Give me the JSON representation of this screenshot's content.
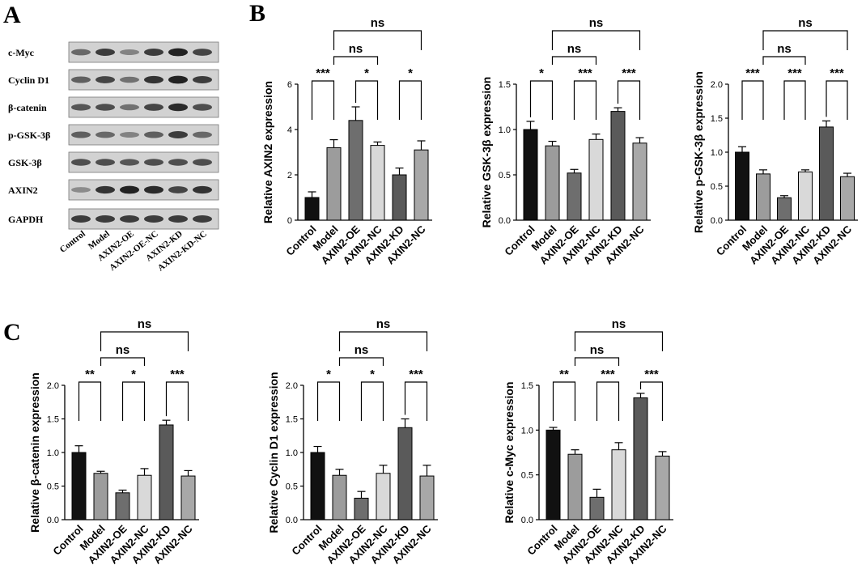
{
  "panels": {
    "A": "A",
    "B": "B",
    "C": "C"
  },
  "western_blot": {
    "proteins": [
      "c-Myc",
      "Cyclin D1",
      "β-catenin",
      "p-GSK-3β",
      "GSK-3β",
      "AXIN2",
      "GAPDH"
    ],
    "lanes": [
      "Control",
      "Model",
      "AXIN2-OE",
      "AXIN2-OE-NC",
      "AXIN2-KD",
      "AXIN2-KD-NC"
    ],
    "band_intensity": [
      [
        0.55,
        0.8,
        0.4,
        0.8,
        0.95,
        0.75
      ],
      [
        0.6,
        0.75,
        0.5,
        0.85,
        0.95,
        0.8
      ],
      [
        0.65,
        0.7,
        0.5,
        0.75,
        0.9,
        0.7
      ],
      [
        0.6,
        0.55,
        0.4,
        0.6,
        0.8,
        0.55
      ],
      [
        0.7,
        0.7,
        0.65,
        0.7,
        0.7,
        0.7
      ],
      [
        0.35,
        0.85,
        0.95,
        0.9,
        0.75,
        0.85
      ],
      [
        0.8,
        0.8,
        0.8,
        0.8,
        0.8,
        0.8
      ]
    ]
  },
  "chart_data": [
    {
      "type": "bar",
      "ylabel": "Relative AXIN2 expression",
      "categories": [
        "Control",
        "Model",
        "AXIN2-OE",
        "AXIN2-NC",
        "AXIN2-KD",
        "AXIN2-NC"
      ],
      "values": [
        1.0,
        3.2,
        4.4,
        3.3,
        2.0,
        3.1
      ],
      "errors": [
        0.25,
        0.35,
        0.6,
        0.15,
        0.3,
        0.4
      ],
      "ylim": [
        0,
        6
      ],
      "yticks": [
        "0",
        "2",
        "4",
        "6"
      ],
      "bar_colors": [
        "#111111",
        "#9c9c9c",
        "#6e6e6e",
        "#d9d9d9",
        "#5a5a5a",
        "#a8a8a8"
      ],
      "significance": [
        {
          "from": 0,
          "to": 1,
          "label": "***"
        },
        {
          "from": 2,
          "to": 3,
          "label": "*"
        },
        {
          "from": 4,
          "to": 5,
          "label": "*"
        },
        {
          "from": 1,
          "to": 3,
          "label": "ns"
        },
        {
          "from": 1,
          "to": 5,
          "label": "ns"
        }
      ]
    },
    {
      "type": "bar",
      "ylabel": "Relative GSK-3β expression",
      "categories": [
        "Control",
        "Model",
        "AXIN2-OE",
        "AXIN2-NC",
        "AXIN2-KD",
        "AXIN2-NC"
      ],
      "values": [
        1.0,
        0.82,
        0.52,
        0.89,
        1.2,
        0.85
      ],
      "errors": [
        0.09,
        0.05,
        0.04,
        0.06,
        0.04,
        0.06
      ],
      "ylim": [
        0,
        1.5
      ],
      "yticks": [
        "0.0",
        "0.5",
        "1.0",
        "1.5"
      ],
      "bar_colors": [
        "#111111",
        "#9c9c9c",
        "#6e6e6e",
        "#d9d9d9",
        "#5a5a5a",
        "#a8a8a8"
      ],
      "significance": [
        {
          "from": 0,
          "to": 1,
          "label": "*"
        },
        {
          "from": 2,
          "to": 3,
          "label": "***"
        },
        {
          "from": 4,
          "to": 5,
          "label": "***"
        },
        {
          "from": 1,
          "to": 3,
          "label": "ns"
        },
        {
          "from": 1,
          "to": 5,
          "label": "ns"
        }
      ]
    },
    {
      "type": "bar",
      "ylabel": "Relative p-GSK-3β expression",
      "categories": [
        "Control",
        "Model",
        "AXIN2-OE",
        "AXIN2-NC",
        "AXIN2-KD",
        "AXIN2-NC"
      ],
      "values": [
        1.0,
        0.68,
        0.33,
        0.71,
        1.37,
        0.64
      ],
      "errors": [
        0.08,
        0.06,
        0.03,
        0.03,
        0.09,
        0.05
      ],
      "ylim": [
        0,
        2.0
      ],
      "yticks": [
        "0.0",
        "0.5",
        "1.0",
        "1.5",
        "2.0"
      ],
      "bar_colors": [
        "#111111",
        "#9c9c9c",
        "#6e6e6e",
        "#d9d9d9",
        "#5a5a5a",
        "#a8a8a8"
      ],
      "significance": [
        {
          "from": 0,
          "to": 1,
          "label": "***"
        },
        {
          "from": 2,
          "to": 3,
          "label": "***"
        },
        {
          "from": 4,
          "to": 5,
          "label": "***"
        },
        {
          "from": 1,
          "to": 3,
          "label": "ns"
        },
        {
          "from": 1,
          "to": 5,
          "label": "ns"
        }
      ]
    },
    {
      "type": "bar",
      "ylabel": "Relative β-catenin expression",
      "categories": [
        "Control",
        "Model",
        "AXIN2-OE",
        "AXIN2-NC",
        "AXIN2-KD",
        "AXIN2-NC"
      ],
      "values": [
        1.0,
        0.69,
        0.4,
        0.66,
        1.41,
        0.65
      ],
      "errors": [
        0.1,
        0.03,
        0.04,
        0.1,
        0.07,
        0.08
      ],
      "ylim": [
        0,
        2.0
      ],
      "yticks": [
        "0.0",
        "0.5",
        "1.0",
        "1.5",
        "2.0"
      ],
      "bar_colors": [
        "#111111",
        "#9c9c9c",
        "#6e6e6e",
        "#d9d9d9",
        "#5a5a5a",
        "#a8a8a8"
      ],
      "significance": [
        {
          "from": 0,
          "to": 1,
          "label": "**"
        },
        {
          "from": 2,
          "to": 3,
          "label": "*"
        },
        {
          "from": 4,
          "to": 5,
          "label": "***"
        },
        {
          "from": 1,
          "to": 3,
          "label": "ns"
        },
        {
          "from": 1,
          "to": 5,
          "label": "ns"
        }
      ]
    },
    {
      "type": "bar",
      "ylabel": "Relative Cyclin D1 expression",
      "categories": [
        "Control",
        "Model",
        "AXIN2-OE",
        "AXIN2-NC",
        "AXIN2-KD",
        "AXIN2-NC"
      ],
      "values": [
        1.0,
        0.66,
        0.32,
        0.69,
        1.37,
        0.65
      ],
      "errors": [
        0.09,
        0.09,
        0.1,
        0.12,
        0.13,
        0.16
      ],
      "ylim": [
        0,
        2.0
      ],
      "yticks": [
        "0.0",
        "0.5",
        "1.0",
        "1.5",
        "2.0"
      ],
      "bar_colors": [
        "#111111",
        "#9c9c9c",
        "#6e6e6e",
        "#d9d9d9",
        "#5a5a5a",
        "#a8a8a8"
      ],
      "significance": [
        {
          "from": 0,
          "to": 1,
          "label": "*"
        },
        {
          "from": 2,
          "to": 3,
          "label": "*"
        },
        {
          "from": 4,
          "to": 5,
          "label": "***"
        },
        {
          "from": 1,
          "to": 3,
          "label": "ns"
        },
        {
          "from": 1,
          "to": 5,
          "label": "ns"
        }
      ]
    },
    {
      "type": "bar",
      "ylabel": "Relative c-Myc expression",
      "categories": [
        "Control",
        "Model",
        "AXIN2-OE",
        "AXIN2-NC",
        "AXIN2-KD",
        "AXIN2-NC"
      ],
      "values": [
        1.0,
        0.73,
        0.25,
        0.78,
        1.36,
        0.71
      ],
      "errors": [
        0.03,
        0.05,
        0.09,
        0.08,
        0.05,
        0.05
      ],
      "ylim": [
        0,
        1.5
      ],
      "yticks": [
        "0.0",
        "0.5",
        "1.0",
        "1.5"
      ],
      "bar_colors": [
        "#111111",
        "#9c9c9c",
        "#6e6e6e",
        "#d9d9d9",
        "#5a5a5a",
        "#a8a8a8"
      ],
      "significance": [
        {
          "from": 0,
          "to": 1,
          "label": "**"
        },
        {
          "from": 2,
          "to": 3,
          "label": "***"
        },
        {
          "from": 4,
          "to": 5,
          "label": "***"
        },
        {
          "from": 1,
          "to": 3,
          "label": "ns"
        },
        {
          "from": 1,
          "to": 5,
          "label": "ns"
        }
      ]
    }
  ]
}
